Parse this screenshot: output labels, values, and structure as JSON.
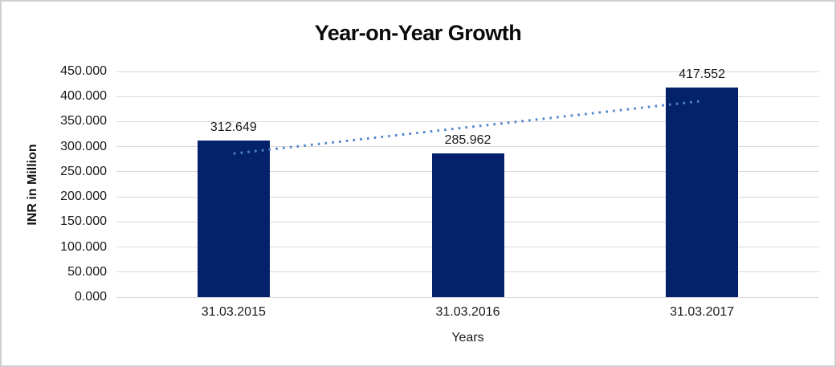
{
  "chart_data": {
    "type": "bar",
    "title": "Year-on-Year Growth",
    "xlabel": "Years",
    "ylabel": "INR in Million",
    "categories": [
      "31.03.2015",
      "31.03.2016",
      "31.03.2017"
    ],
    "values": [
      312.649,
      285.962,
      417.552
    ],
    "data_labels": [
      "312.649",
      "285.962",
      "417.552"
    ],
    "ylim": [
      0,
      450
    ],
    "y_tick_step": 50,
    "y_tick_labels": [
      "0.000",
      "50.000",
      "100.000",
      "150.000",
      "200.000",
      "250.000",
      "300.000",
      "350.000",
      "400.000",
      "450.000"
    ],
    "grid": true,
    "legend_position": "none",
    "colors": {
      "bar": "#04226b",
      "trendline": "#4e86c9",
      "gridline": "#d9d9d9",
      "title_text": "#0a0a0a",
      "label_text": "#1a1a1a",
      "frame_border": "#cfcfcf",
      "background": "#ffffff"
    },
    "trendline": {
      "type": "linear",
      "style": "dotted",
      "start": {
        "category_index": 0,
        "value": 286.3
      },
      "end": {
        "category_index": 2,
        "value": 391.2
      }
    }
  }
}
